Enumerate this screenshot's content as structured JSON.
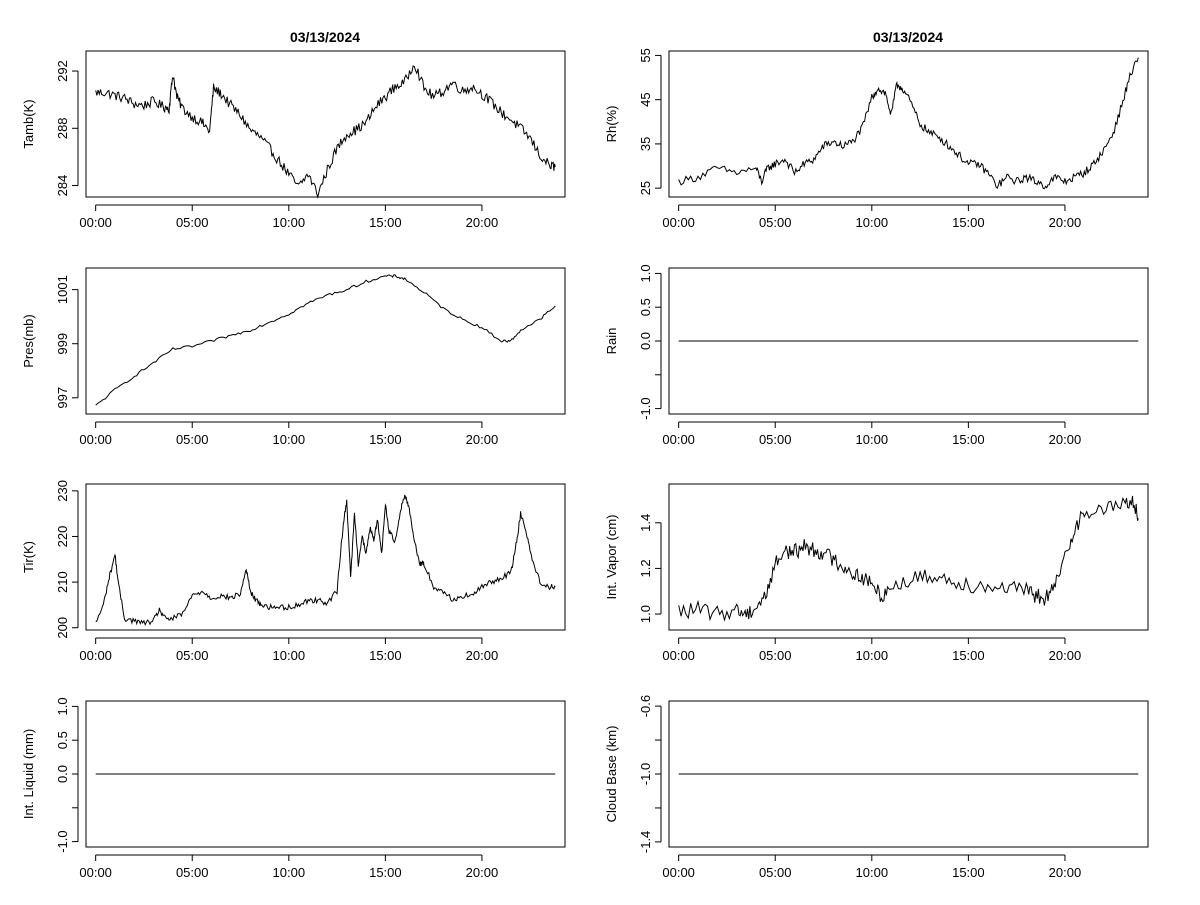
{
  "colors": {
    "background": "#ffffff",
    "line": "#000000"
  },
  "titles": {
    "left": "03/13/2024",
    "right": "03/13/2024"
  },
  "chart_data": [
    {
      "id": "tamb",
      "type": "line",
      "ylabel": "Tamb(K)",
      "xlim": [
        -0.5,
        24.3
      ],
      "ylim": [
        283.2,
        293.4
      ],
      "yticks": [
        284,
        288,
        292
      ],
      "ytick_labels": [
        "284",
        "288",
        "292"
      ],
      "xticks": [
        0,
        5,
        10,
        15,
        20
      ],
      "xtick_labels": [
        "00:00",
        "05:00",
        "10:00",
        "15:00",
        "20:00"
      ],
      "grid": false,
      "noise": 0.35,
      "series": [
        {
          "x": [
            0,
            0.5,
            1,
            1.5,
            2,
            2.5,
            3,
            3.5,
            3.8,
            4,
            4.2,
            4.5,
            5,
            5.5,
            5.9,
            6.1,
            6.5,
            7,
            7.5,
            8,
            8.5,
            9,
            9.5,
            10,
            10.5,
            11,
            11.5,
            12,
            12.5,
            13,
            13.5,
            14,
            14.5,
            15,
            15.5,
            16,
            16.5,
            17,
            17.5,
            18,
            18.5,
            19,
            19.5,
            20,
            20.5,
            21,
            21.5,
            22,
            22.5,
            23,
            23.5,
            23.8
          ],
          "y": [
            290.5,
            290.5,
            290.3,
            290.1,
            289.7,
            289.6,
            289.9,
            289.5,
            289.4,
            291.8,
            290.2,
            289.4,
            288.8,
            288.4,
            287.8,
            290.8,
            290.4,
            289.6,
            288.9,
            287.9,
            287.4,
            286.6,
            285.7,
            284.8,
            283.9,
            284.8,
            283.4,
            285.1,
            286.6,
            287.6,
            287.9,
            288.4,
            289.5,
            290.2,
            290.9,
            291.2,
            292.6,
            290.8,
            290.2,
            290.6,
            291.2,
            290.6,
            290.9,
            290.4,
            289.8,
            289.1,
            288.6,
            288.0,
            287.3,
            286.1,
            285.4,
            285.3
          ]
        }
      ]
    },
    {
      "id": "rh",
      "type": "line",
      "ylabel": "Rh(%)",
      "xlim": [
        -0.5,
        24.3
      ],
      "ylim": [
        23,
        56
      ],
      "yticks": [
        25,
        35,
        45,
        55
      ],
      "ytick_labels": [
        "25",
        "35",
        "45",
        "55"
      ],
      "xticks": [
        0,
        5,
        10,
        15,
        20
      ],
      "xtick_labels": [
        "00:00",
        "05:00",
        "10:00",
        "15:00",
        "20:00"
      ],
      "grid": false,
      "noise": 0.9,
      "series": [
        {
          "x": [
            0,
            1,
            2,
            3,
            4,
            4.3,
            4.6,
            5,
            5.5,
            6,
            6.5,
            7,
            7.5,
            8,
            8.5,
            9,
            9.5,
            10,
            10.3,
            10.7,
            11,
            11.3,
            11.6,
            12,
            12.5,
            13,
            13.5,
            14,
            14.5,
            15,
            15.5,
            16,
            16.5,
            17,
            17.5,
            18,
            18.5,
            19,
            19.5,
            20,
            20.5,
            21,
            21.5,
            22,
            22.5,
            23,
            23.3,
            23.8
          ],
          "y": [
            26.5,
            27.5,
            29.5,
            28.5,
            29.5,
            26.5,
            29.5,
            30.5,
            31.5,
            28.5,
            30.5,
            31.5,
            34.5,
            35.5,
            34.5,
            35.5,
            38.5,
            45.5,
            47.5,
            46.5,
            41.5,
            48.5,
            47.5,
            44.5,
            39.5,
            37.5,
            36.5,
            34.5,
            32.5,
            30.5,
            30.5,
            28.5,
            25.5,
            27.5,
            26.5,
            27.5,
            26.5,
            25.5,
            27.5,
            26.5,
            27.5,
            28.5,
            30.5,
            33.5,
            37.5,
            44.5,
            49.5,
            54.5
          ]
        }
      ]
    },
    {
      "id": "pres",
      "type": "line",
      "ylabel": "Pres(mb)",
      "xlim": [
        -0.5,
        24.3
      ],
      "ylim": [
        996.4,
        1001.8
      ],
      "yticks": [
        997,
        999,
        1001
      ],
      "ytick_labels": [
        "997",
        "999",
        "1001"
      ],
      "xticks": [
        0,
        5,
        10,
        15,
        20
      ],
      "xtick_labels": [
        "00:00",
        "05:00",
        "10:00",
        "15:00",
        "20:00"
      ],
      "grid": false,
      "noise": 0.05,
      "series": [
        {
          "x": [
            0,
            1,
            2,
            3,
            4,
            5,
            6,
            7,
            8,
            9,
            10,
            11,
            12,
            13,
            14,
            15,
            15.5,
            16,
            17,
            18,
            19,
            20,
            21,
            21.5,
            22,
            23,
            23.8
          ],
          "y": [
            996.7,
            997.3,
            997.8,
            998.3,
            998.8,
            998.9,
            999.1,
            999.3,
            999.5,
            999.8,
            1000.1,
            1000.5,
            1000.8,
            1001.0,
            1001.3,
            1001.5,
            1001.5,
            1001.4,
            1000.9,
            1000.3,
            999.9,
            999.6,
            999.1,
            999.1,
            999.5,
            999.9,
            1000.4
          ]
        }
      ]
    },
    {
      "id": "rain",
      "type": "line",
      "ylabel": "Rain",
      "xlim": [
        -0.5,
        24.3
      ],
      "ylim": [
        -1.08,
        1.08
      ],
      "yticks": [
        -1.0,
        -0.5,
        0.0,
        0.5,
        1.0
      ],
      "ytick_labels": [
        "-1.0",
        "",
        "0.0",
        "0.5",
        "1.0"
      ],
      "xticks": [
        0,
        5,
        10,
        15,
        20
      ],
      "xtick_labels": [
        "00:00",
        "05:00",
        "10:00",
        "15:00",
        "20:00"
      ],
      "grid": false,
      "noise": 0,
      "series": [
        {
          "x": [
            0,
            23.8
          ],
          "y": [
            0,
            0
          ]
        }
      ]
    },
    {
      "id": "tir",
      "type": "line",
      "ylabel": "Tir(K)",
      "xlim": [
        -0.5,
        24.3
      ],
      "ylim": [
        199.5,
        231.5
      ],
      "yticks": [
        200,
        210,
        220,
        230
      ],
      "ytick_labels": [
        "200",
        "210",
        "220",
        "230"
      ],
      "xticks": [
        0,
        5,
        10,
        15,
        20
      ],
      "xtick_labels": [
        "00:00",
        "05:00",
        "10:00",
        "15:00",
        "20:00"
      ],
      "grid": false,
      "noise": 0.6,
      "series": [
        {
          "x": [
            0,
            0.4,
            0.7,
            1,
            1.2,
            1.5,
            2,
            2.5,
            3,
            3.3,
            3.6,
            4,
            4.5,
            5,
            5.5,
            6,
            6.5,
            7,
            7.5,
            7.8,
            8,
            8.3,
            8.6,
            9,
            9.5,
            10,
            10.5,
            11,
            11.5,
            12,
            12.5,
            12.8,
            13,
            13.2,
            13.4,
            13.6,
            13.8,
            14,
            14.2,
            14.4,
            14.6,
            14.8,
            15,
            15.2,
            15.5,
            15.8,
            16,
            16.2,
            16.5,
            16.8,
            17,
            17.5,
            18,
            18.5,
            19,
            19.5,
            20,
            20.5,
            21,
            21.5,
            21.8,
            22,
            22.3,
            22.6,
            23,
            23.5,
            23.8
          ],
          "y": [
            201,
            205,
            211,
            216,
            209,
            202,
            201.5,
            201,
            201.5,
            204,
            202,
            202,
            203,
            207,
            208,
            206.5,
            207,
            206.5,
            207.5,
            213,
            208,
            206,
            205,
            204.5,
            204.5,
            204.5,
            205,
            206,
            206,
            205.5,
            208,
            222,
            228,
            211,
            225,
            214,
            220,
            216,
            222,
            219,
            224,
            216,
            227,
            221,
            219,
            226,
            229,
            227,
            219,
            214,
            214,
            209,
            208,
            206,
            207,
            207,
            209,
            210,
            211,
            212,
            219,
            225,
            221,
            215,
            210,
            209,
            209
          ]
        }
      ]
    },
    {
      "id": "vapor",
      "type": "line",
      "ylabel": "Int. Vapor (cm)",
      "xlim": [
        -0.5,
        24.3
      ],
      "ylim": [
        0.93,
        1.57
      ],
      "yticks": [
        1.0,
        1.2,
        1.4
      ],
      "ytick_labels": [
        "1.0",
        "1.2",
        "1.4"
      ],
      "xticks": [
        0,
        5,
        10,
        15,
        20
      ],
      "xtick_labels": [
        "00:00",
        "05:00",
        "10:00",
        "15:00",
        "20:00"
      ],
      "grid": false,
      "noise": 0.035,
      "series": [
        {
          "x": [
            0,
            1,
            2,
            3,
            3.5,
            4,
            4.5,
            5,
            5.5,
            6,
            6.5,
            7,
            7.5,
            8,
            8.5,
            9,
            9.5,
            10,
            10.5,
            11,
            12,
            13,
            14,
            15,
            16,
            17,
            18,
            18.5,
            19,
            19.5,
            20,
            20.5,
            21,
            22,
            23,
            23.5,
            23.8
          ],
          "y": [
            1.01,
            1.02,
            1.0,
            1.02,
            1.0,
            1.03,
            1.08,
            1.22,
            1.28,
            1.27,
            1.3,
            1.28,
            1.27,
            1.24,
            1.21,
            1.18,
            1.16,
            1.13,
            1.08,
            1.12,
            1.15,
            1.17,
            1.15,
            1.13,
            1.12,
            1.12,
            1.1,
            1.08,
            1.07,
            1.12,
            1.25,
            1.38,
            1.44,
            1.46,
            1.48,
            1.5,
            1.42
          ]
        }
      ]
    },
    {
      "id": "liquid",
      "type": "line",
      "ylabel": "Int. Liquid (mm)",
      "xlim": [
        -0.5,
        24.3
      ],
      "ylim": [
        -1.08,
        1.08
      ],
      "yticks": [
        -1.0,
        -0.5,
        0.0,
        0.5,
        1.0
      ],
      "ytick_labels": [
        "-1.0",
        "",
        "0.0",
        "0.5",
        "1.0"
      ],
      "xticks": [
        0,
        5,
        10,
        15,
        20
      ],
      "xtick_labels": [
        "00:00",
        "05:00",
        "10:00",
        "15:00",
        "20:00"
      ],
      "grid": false,
      "noise": 0,
      "series": [
        {
          "x": [
            0,
            23.8
          ],
          "y": [
            0,
            0
          ]
        }
      ]
    },
    {
      "id": "cloudbase",
      "type": "line",
      "ylabel": "Cloud Base (km)",
      "xlim": [
        -0.5,
        24.3
      ],
      "ylim": [
        -1.43,
        -0.57
      ],
      "yticks": [
        -1.4,
        -1.2,
        -1.0,
        -0.8,
        -0.6
      ],
      "ytick_labels": [
        "-1.4",
        "",
        "-1.0",
        "",
        "-0.6"
      ],
      "xticks": [
        0,
        5,
        10,
        15,
        20
      ],
      "xtick_labels": [
        "00:00",
        "05:00",
        "10:00",
        "15:00",
        "20:00"
      ],
      "grid": false,
      "noise": 0,
      "series": [
        {
          "x": [
            0,
            23.8
          ],
          "y": [
            -1.0,
            -1.0
          ]
        }
      ]
    }
  ]
}
